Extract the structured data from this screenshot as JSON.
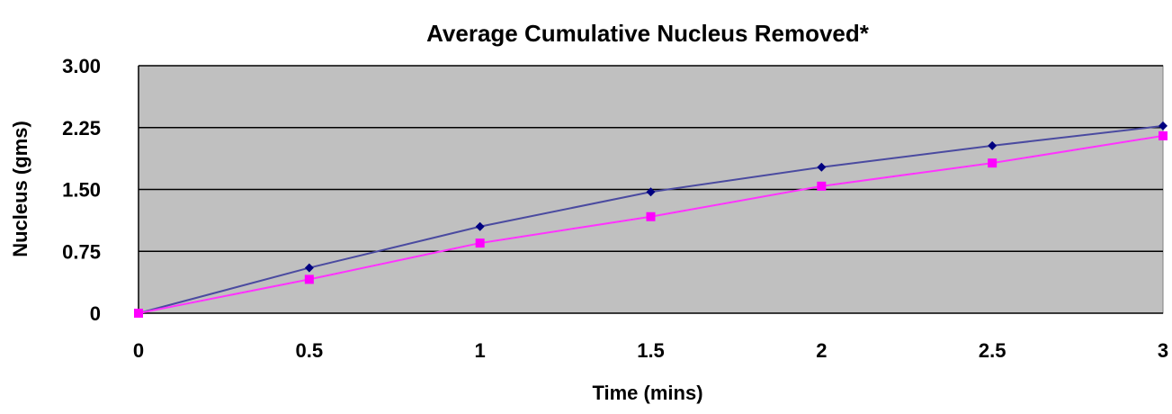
{
  "chart_data": {
    "type": "line",
    "title": "Average Cumulative Nucleus Removed*",
    "xlabel": "Time (mins)",
    "ylabel": "Nucleus (gms)",
    "x": [
      0,
      0.5,
      1,
      1.5,
      2,
      2.5,
      3
    ],
    "x_tick_labels": [
      "0",
      "0.5",
      "1",
      "1.5",
      "2",
      "2.5",
      "3"
    ],
    "y_ticks": [
      0,
      0.75,
      1.5,
      2.25,
      3
    ],
    "y_tick_labels": [
      "0",
      "0.75",
      "1.50",
      "2.25",
      "3.00"
    ],
    "xlim": [
      0,
      3
    ],
    "ylim": [
      0,
      3
    ],
    "grid": "horizontal",
    "legend": "none",
    "plot_background": "#c0c0c0",
    "series": [
      {
        "values": [
          0,
          0.55,
          1.05,
          1.47,
          1.77,
          2.03,
          2.27
        ],
        "color": "#4a4aa0",
        "marker": "diamond",
        "marker_color": "#000080"
      },
      {
        "values": [
          0,
          0.41,
          0.85,
          1.17,
          1.54,
          1.82,
          2.15
        ],
        "color": "#ff33ff",
        "marker": "square",
        "marker_color": "#ff00ff"
      }
    ]
  }
}
